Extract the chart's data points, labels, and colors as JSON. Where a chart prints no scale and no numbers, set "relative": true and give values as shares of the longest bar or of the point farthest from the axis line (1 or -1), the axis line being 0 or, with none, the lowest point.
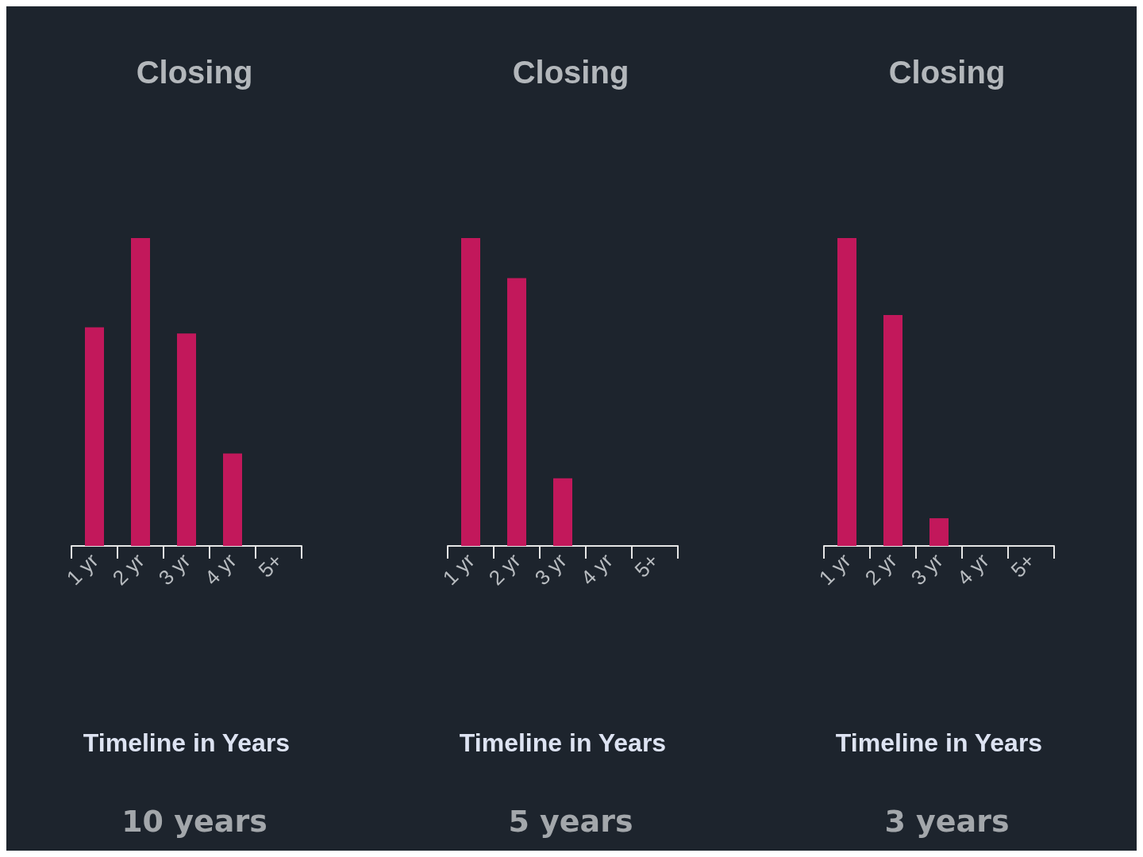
{
  "chart_data": [
    {
      "type": "bar",
      "title": "Closing",
      "xlabel": "Timeline in Years",
      "annotations": [
        "10 years"
      ],
      "categories": [
        "1 yr",
        "2 yr",
        "3 yr",
        "4 yr",
        "5+"
      ],
      "values": [
        0.71,
        1,
        0.69,
        0.3,
        0
      ],
      "color": "#c2185b",
      "relative": true
    },
    {
      "type": "bar",
      "title": "Closing",
      "xlabel": "Timeline in Years",
      "annotations": [
        "5 years"
      ],
      "categories": [
        "1 yr",
        "2 yr",
        "3 yr",
        "4 yr",
        "5+"
      ],
      "values": [
        1,
        0.87,
        0.22,
        0,
        0
      ],
      "color": "#c2185b",
      "relative": true
    },
    {
      "type": "bar",
      "title": "Closing",
      "xlabel": "Timeline in Years",
      "annotations": [
        "3 years"
      ],
      "categories": [
        "1 yr",
        "2 yr",
        "3 yr",
        "4 yr",
        "5+"
      ],
      "values": [
        1,
        0.75,
        0.09,
        0,
        0
      ],
      "color": "#c2185b",
      "relative": true
    }
  ]
}
